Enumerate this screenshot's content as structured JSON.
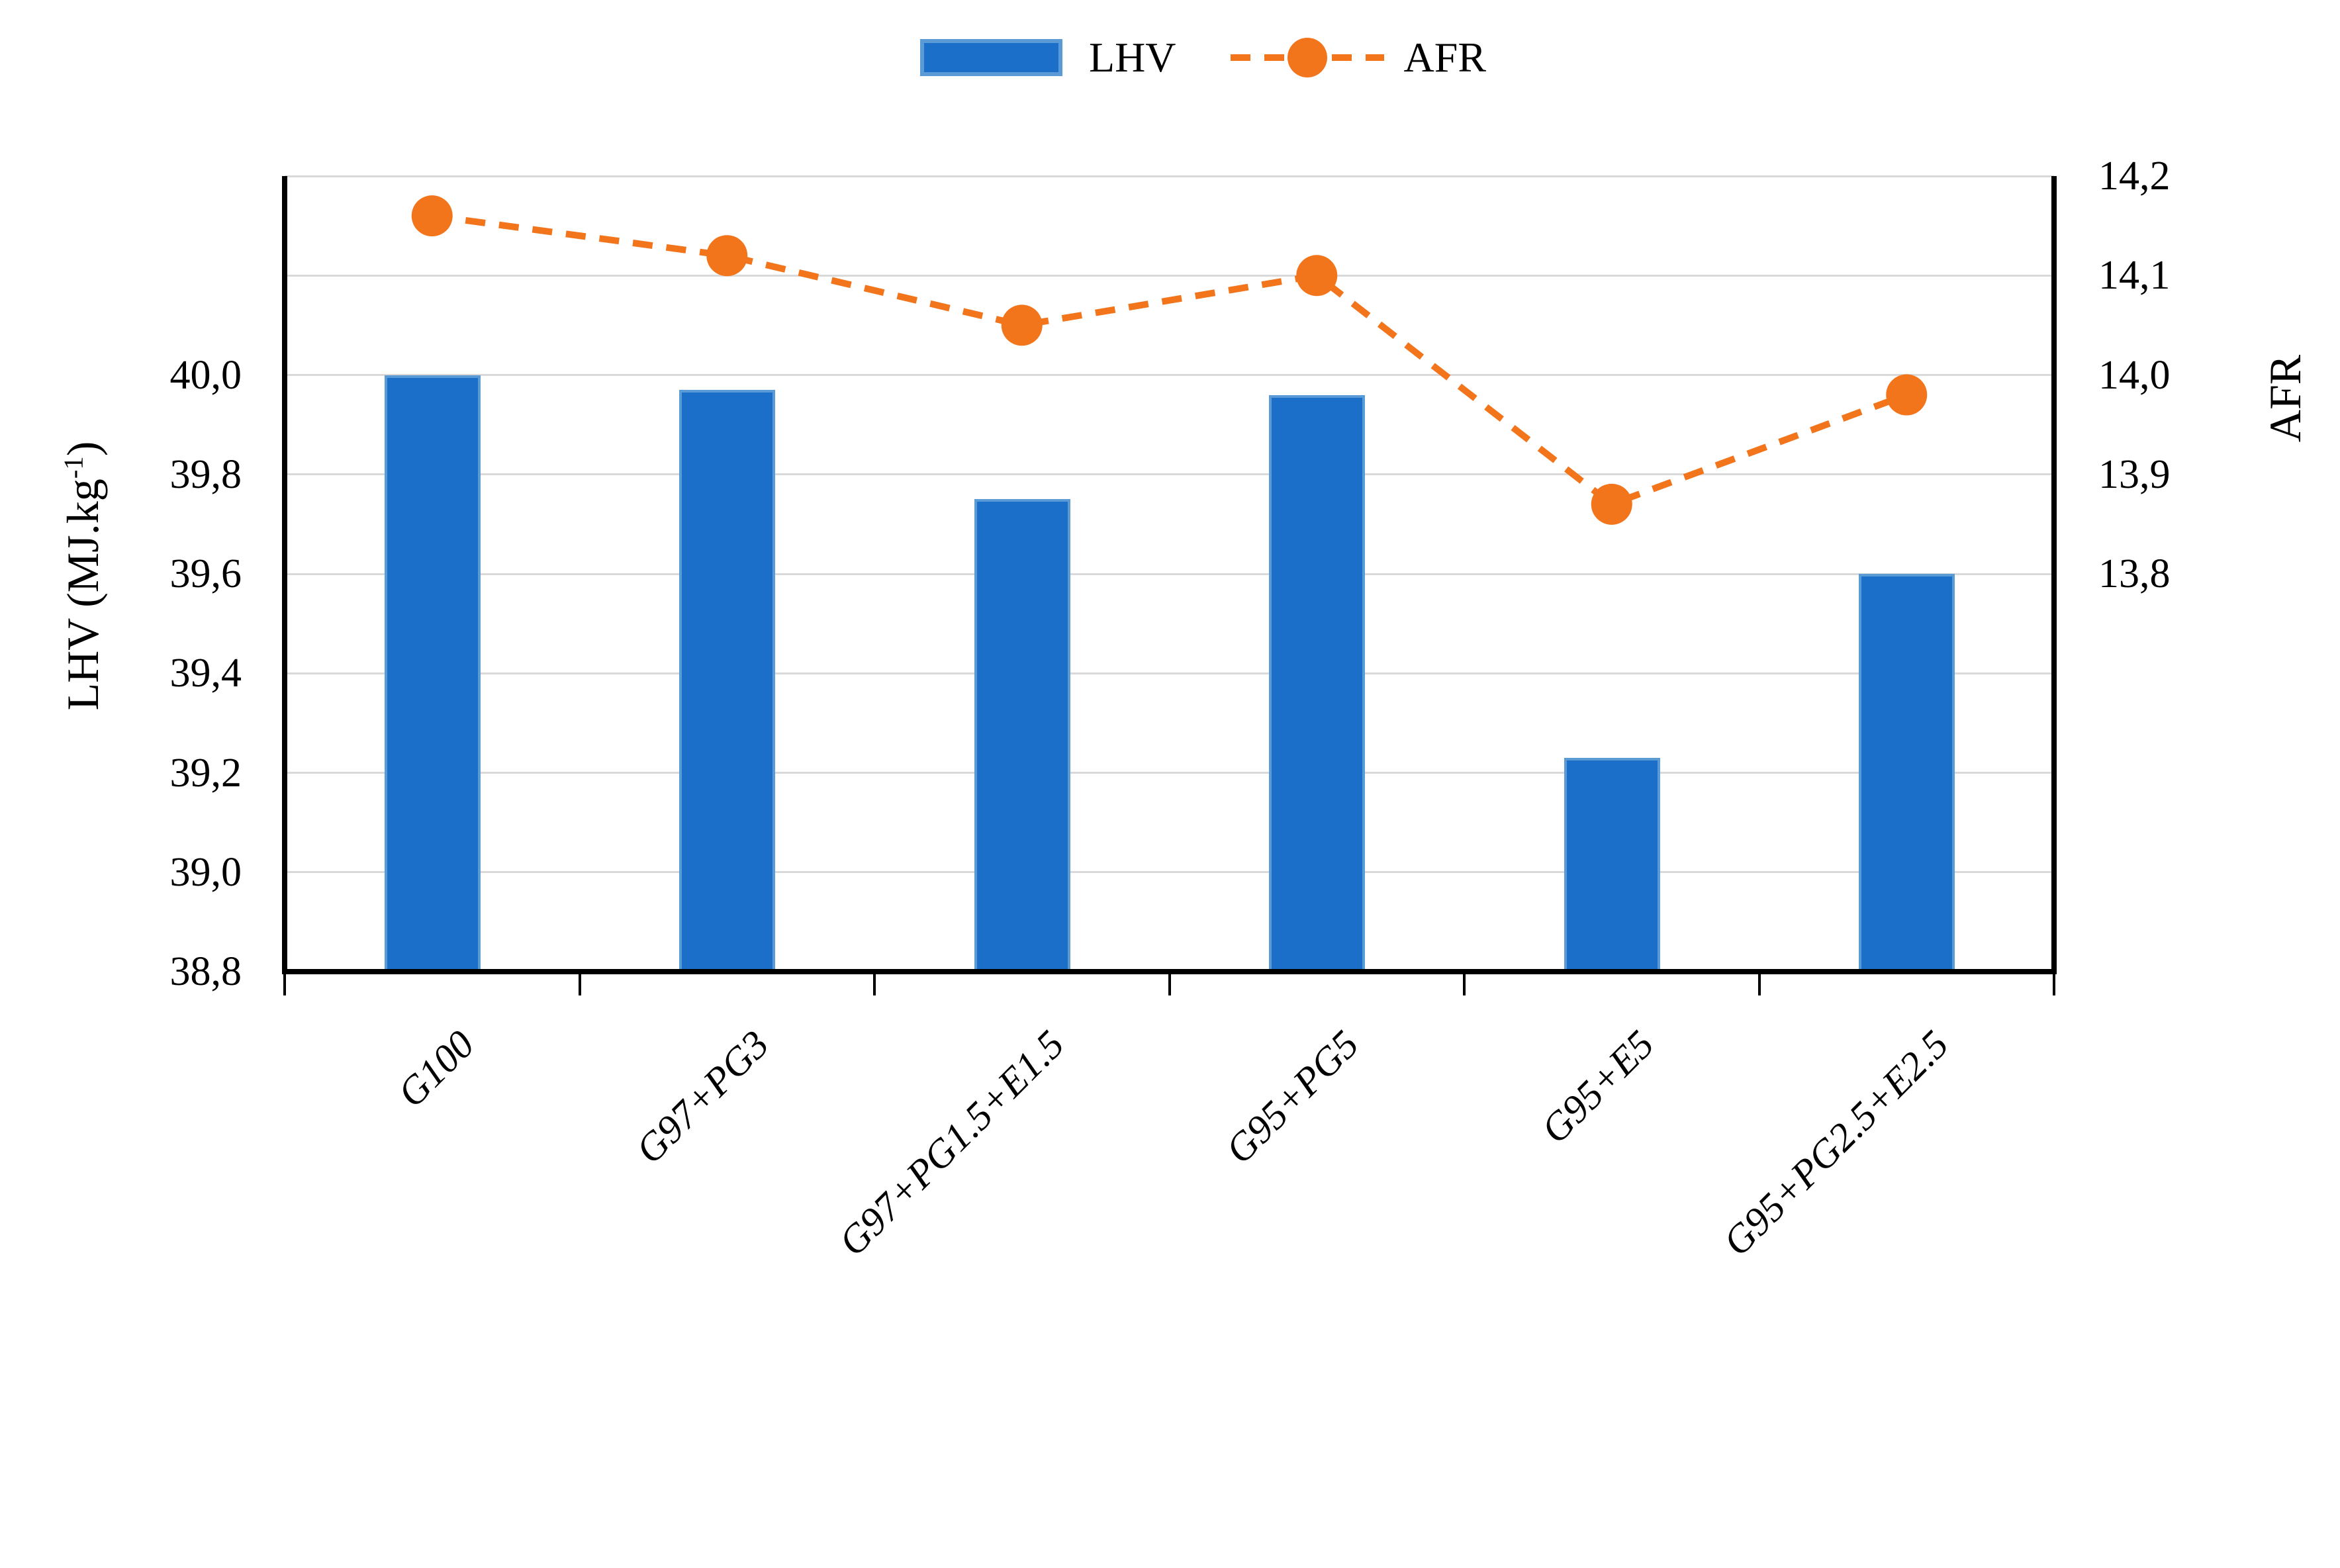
{
  "legend": {
    "lhv_label": "LHV",
    "afr_label": "AFR"
  },
  "axes": {
    "left_title": {
      "pre": "LHV (MJ.kg",
      "sup": "-1",
      "post": ")"
    },
    "right_title": "AFR",
    "left_tick_labels": [
      "40,0",
      "39,8",
      "39,6",
      "39,4",
      "39,2",
      "39,0",
      "38,8"
    ],
    "right_tick_labels": [
      "14,2",
      "14,1",
      "14,0",
      "13,9",
      "13,8"
    ]
  },
  "chart_data": {
    "type": "combo",
    "categories": [
      "G100",
      "G97+PG3",
      "G97+PG1.5+E1.5",
      "G95+PG5",
      "G95+E5",
      "G95+PG2.5+E2.5"
    ],
    "series": [
      {
        "name": "LHV",
        "type": "bar",
        "axis": "left",
        "values": [
          40.0,
          39.97,
          39.75,
          39.96,
          39.23,
          39.6
        ]
      },
      {
        "name": "AFR",
        "type": "line",
        "axis": "right",
        "values": [
          14.16,
          14.12,
          14.05,
          14.1,
          13.87,
          13.98
        ]
      }
    ],
    "left_axis": {
      "label": "LHV (MJ.kg-1)",
      "min": 38.8,
      "max_effective": 40.4,
      "tick_step": 0.2,
      "labeled_range": [
        38.8,
        40.0
      ]
    },
    "right_axis": {
      "label": "AFR",
      "max": 14.2,
      "tick_step": 0.1,
      "labeled_range": [
        13.8,
        14.2
      ],
      "min_effective": 13.4
    },
    "grid": true,
    "legend_position": "top",
    "decimal_separator": ","
  },
  "colors": {
    "bar_fill": "#1b6fc8",
    "bar_border": "#5b9bd5",
    "line": "#f2751c",
    "marker": "#f2751c",
    "gridline": "#d9d9d9",
    "axis": "#000000",
    "text": "#000000"
  }
}
